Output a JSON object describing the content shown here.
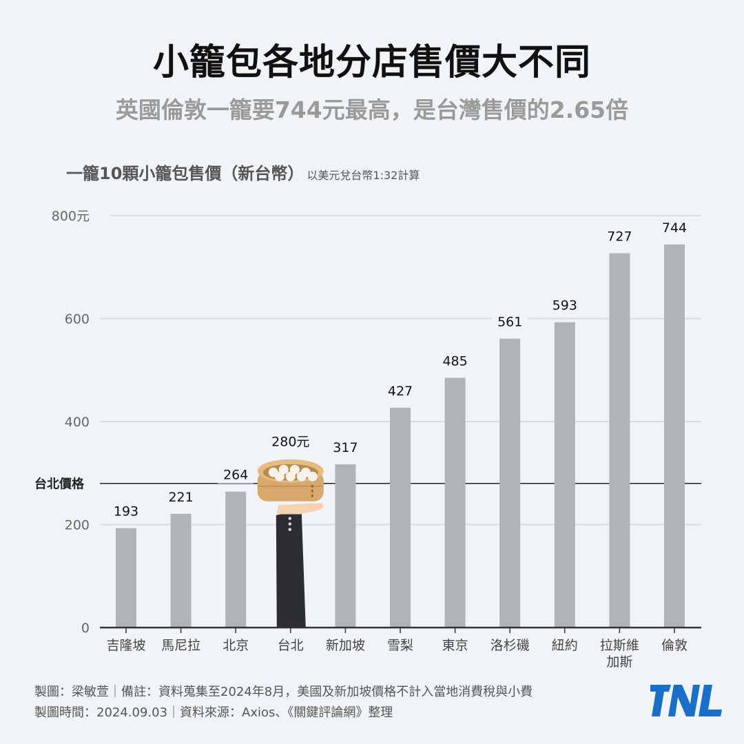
{
  "title": "小籠包各地分店售價大不同",
  "subtitle": "英國倫敦一籠要744元最高，是台灣售價的2.65倍",
  "chart_header": {
    "main": "一籠10顆小籠包售價（新台幣）",
    "note": "以美元兌台幣1:32計算"
  },
  "chart_data": {
    "type": "bar",
    "categories": [
      "吉隆坡",
      "馬尼拉",
      "北京",
      "台北",
      "新加坡",
      "雪梨",
      "東京",
      "洛杉磯",
      "紐約",
      "拉斯維加斯",
      "倫敦"
    ],
    "category_lines": [
      [
        "吉隆坡"
      ],
      [
        "馬尼拉"
      ],
      [
        "北京"
      ],
      [
        "台北"
      ],
      [
        "新加坡"
      ],
      [
        "雪梨"
      ],
      [
        "東京"
      ],
      [
        "洛杉磯"
      ],
      [
        "紐約"
      ],
      [
        "拉斯維",
        "加斯"
      ],
      [
        "倫敦"
      ]
    ],
    "values": [
      193,
      221,
      264,
      280,
      317,
      427,
      485,
      561,
      593,
      727,
      744
    ],
    "data_labels": [
      "193",
      "221",
      "264",
      "280元",
      "317",
      "427",
      "485",
      "561",
      "593",
      "727",
      "744"
    ],
    "highlight_index": 3,
    "ylim": [
      0,
      800
    ],
    "yticks": [
      0,
      200,
      400,
      600,
      800
    ],
    "ytick_labels": [
      "0",
      "200",
      "400",
      "600",
      "800元"
    ],
    "grid": true,
    "reference_line": {
      "value": 280,
      "label": "台北價格"
    },
    "colors": {
      "bar": "#b0b3b8",
      "highlight": "#2c2d30",
      "grid": "#d8dde2",
      "axis": "#333333",
      "steamer": "#d9a86c"
    }
  },
  "footer": {
    "line1": "製圖：梁敏萱｜備註：資料蒐集至2024年8月，美國及新加坡價格不計入當地消費稅與小費",
    "line2": "製圖時間：2024.09.03｜資料來源：Axios、《關鍵評論網》整理"
  },
  "logo": {
    "text": "TNL",
    "color": "#1a6fc9"
  }
}
